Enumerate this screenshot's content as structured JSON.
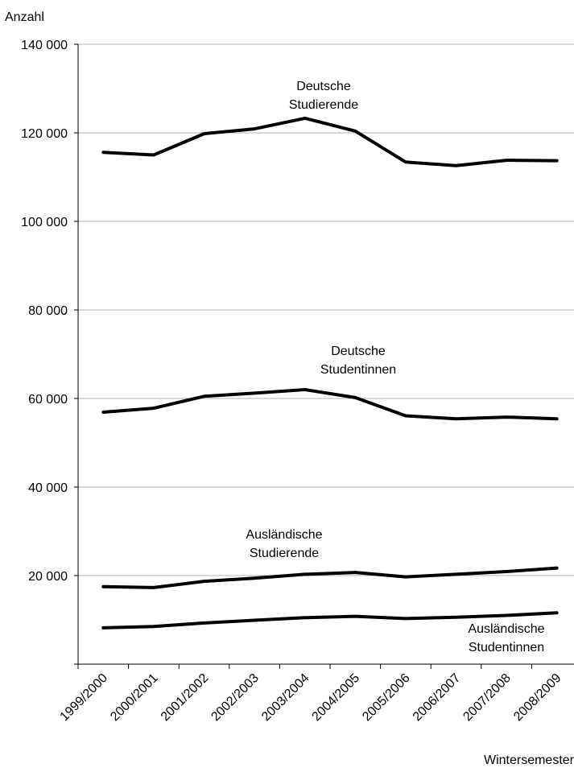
{
  "chart_data": {
    "type": "line",
    "ylabel": "Anzahl",
    "xlabel": "Wintersemester",
    "ylim": [
      0,
      140000
    ],
    "yticks": [
      {
        "value": 20000,
        "label": "20 000"
      },
      {
        "value": 40000,
        "label": "40 000"
      },
      {
        "value": 60000,
        "label": "60 000"
      },
      {
        "value": 80000,
        "label": "80 000"
      },
      {
        "value": 100000,
        "label": "100 000"
      },
      {
        "value": 120000,
        "label": "120 000"
      },
      {
        "value": 140000,
        "label": "140 000"
      }
    ],
    "categories": [
      "1999/2000",
      "2000/2001",
      "2001/2002",
      "2002/2003",
      "2003/2004",
      "2004/2005",
      "2005/2006",
      "2006/2007",
      "2007/2008",
      "2008/2009"
    ],
    "grid": true,
    "legend": "none",
    "series": [
      {
        "name": "Deutsche Studierende",
        "label_lines": [
          "Deutsche",
          "Studierende"
        ],
        "values": [
          115600,
          115000,
          119800,
          120900,
          123300,
          120400,
          113400,
          112600,
          113800,
          113700
        ]
      },
      {
        "name": "Deutsche Studentinnen",
        "label_lines": [
          "Deutsche",
          "Studentinnen"
        ],
        "values": [
          56900,
          57800,
          60500,
          61200,
          62000,
          60200,
          56100,
          55400,
          55800,
          55400
        ]
      },
      {
        "name": "Ausländische Studierende",
        "label_lines": [
          "Ausländische",
          "Studierende"
        ],
        "values": [
          17500,
          17300,
          18700,
          19400,
          20300,
          20700,
          19700,
          20300,
          20900,
          21700
        ]
      },
      {
        "name": "Ausländische Studentinnen",
        "label_lines": [
          "Ausländische",
          "Studentinnen"
        ],
        "values": [
          8200,
          8500,
          9300,
          9900,
          10500,
          10800,
          10300,
          10600,
          11000,
          11600
        ]
      }
    ]
  }
}
